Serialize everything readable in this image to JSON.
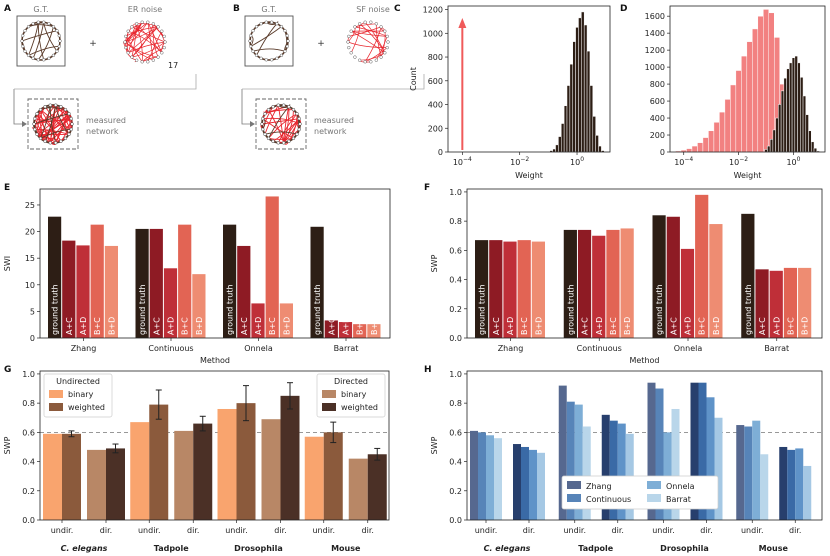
{
  "panel_letters": [
    "A",
    "B",
    "C",
    "D",
    "E",
    "F",
    "G",
    "H"
  ],
  "schematics": {
    "A": {
      "gt_label": "G.T.",
      "noise_label": "ER noise",
      "plus": "+",
      "count": "17",
      "measured_label": [
        "measured",
        "network"
      ]
    },
    "B": {
      "gt_label": "G.T.",
      "noise_label": "SF noise",
      "plus": "+",
      "measured_label": [
        "measured",
        "network"
      ]
    }
  },
  "colors": {
    "black": "#2d1e15",
    "red_dark": "#8e1b24",
    "red_mid": "#bf2f38",
    "red_light": "#e26454",
    "salmon": "#ee8c72",
    "hist_red": "#f06c6c",
    "hist_black": "#2d1e15",
    "g_bin_und": "#f9a46e",
    "g_w_und": "#8b5a3c",
    "g_bin_dir": "#b88766",
    "g_w_dir": "#4b3026",
    "h_zhang": "#56688f",
    "h_cont": "#5784b8",
    "h_onnela": "#7eaed6",
    "h_barrat": "#b9d6ea"
  },
  "chart_data": [
    {
      "panel": "C",
      "type": "bar",
      "xlabel": "Weight",
      "ylabel": "Count",
      "xscale": "log",
      "xticks": [
        "10^{-4}",
        "10^{-2}",
        "10^{0}"
      ],
      "yticks": [
        0,
        200,
        400,
        600,
        800,
        1000,
        1200
      ],
      "ylim": [
        0,
        1230
      ],
      "arrow_x": 0.0001,
      "bins_log10": [
        -0.9,
        -0.8,
        -0.7,
        -0.6,
        -0.5,
        -0.4,
        -0.3,
        -0.2,
        -0.1,
        0.0,
        0.1,
        0.2,
        0.3,
        0.4,
        0.5,
        0.6,
        0.7,
        0.8,
        0.9
      ],
      "counts": [
        12,
        25,
        60,
        130,
        240,
        390,
        560,
        740,
        930,
        1050,
        1130,
        1180,
        1070,
        850,
        560,
        300,
        140,
        50,
        12
      ]
    },
    {
      "panel": "D",
      "type": "bar",
      "xlabel": "Weight",
      "xscale": "log",
      "xticks": [
        "10^{-4}",
        "10^{-2}",
        "10^{0}"
      ],
      "yticks": [
        0,
        200,
        400,
        600,
        800,
        1000,
        1200,
        1400,
        1600
      ],
      "ylim": [
        0,
        1720
      ],
      "series": [
        {
          "name": "",
          "bins_log10": [
            -4.6,
            -4.4,
            -4.2,
            -4.0,
            -3.8,
            -3.6,
            -3.4,
            -3.2,
            -3.0,
            -2.8,
            -2.6,
            -2.4,
            -2.2,
            -2.0,
            -1.8,
            -1.6,
            -1.4,
            -1.2,
            -1.0,
            -0.8,
            -0.6,
            -0.4,
            -0.2
          ],
          "counts": [
            3,
            6,
            12,
            22,
            40,
            70,
            110,
            170,
            250,
            350,
            470,
            620,
            790,
            960,
            1130,
            1300,
            1450,
            1600,
            1680,
            1640,
            1350,
            800,
            250
          ]
        },
        {
          "name": "",
          "bins_log10": [
            -1.0,
            -0.9,
            -0.8,
            -0.7,
            -0.6,
            -0.5,
            -0.4,
            -0.3,
            -0.2,
            -0.1,
            0.0,
            0.1,
            0.2,
            0.3,
            0.4,
            0.5,
            0.6,
            0.7,
            0.8,
            0.9
          ],
          "counts": [
            30,
            70,
            150,
            260,
            400,
            560,
            720,
            870,
            980,
            1050,
            1110,
            1130,
            1050,
            880,
            660,
            440,
            250,
            120,
            45,
            12
          ]
        }
      ]
    },
    {
      "panel": "E",
      "type": "bar",
      "xlabel": "Method",
      "ylabel": "SWI",
      "ylim": [
        0,
        28
      ],
      "yticks": [
        0,
        5,
        10,
        15,
        20,
        25
      ],
      "categories": [
        "Zhang",
        "Continuous",
        "Onnela",
        "Barrat"
      ],
      "bar_labels": [
        "ground truth",
        "A+C",
        "A+D",
        "B+C",
        "B+D"
      ],
      "series": [
        {
          "name": "ground truth",
          "values": [
            22.8,
            20.5,
            21.3,
            20.9
          ]
        },
        {
          "name": "A+C",
          "values": [
            18.3,
            20.5,
            17.3,
            3.3
          ]
        },
        {
          "name": "A+D",
          "values": [
            17.4,
            13.1,
            6.5,
            3.0
          ]
        },
        {
          "name": "B+C",
          "values": [
            21.3,
            21.3,
            26.6,
            2.6
          ]
        },
        {
          "name": "B+D",
          "values": [
            17.3,
            12.0,
            6.5,
            2.6
          ]
        }
      ]
    },
    {
      "panel": "F",
      "type": "bar",
      "xlabel": "Method",
      "ylabel": "SWP",
      "ylim": [
        0,
        1.02
      ],
      "yticks": [
        "0.0",
        "0.2",
        "0.4",
        "0.6",
        "0.8",
        "1.0"
      ],
      "categories": [
        "Zhang",
        "Continuous",
        "Onnela",
        "Barrat"
      ],
      "bar_labels": [
        "ground truth",
        "A+C",
        "A+D",
        "B+C",
        "B+D"
      ],
      "series": [
        {
          "name": "ground truth",
          "values": [
            0.67,
            0.74,
            0.84,
            0.85
          ]
        },
        {
          "name": "A+C",
          "values": [
            0.67,
            0.74,
            0.83,
            0.47
          ]
        },
        {
          "name": "A+D",
          "values": [
            0.66,
            0.7,
            0.61,
            0.46
          ]
        },
        {
          "name": "B+C",
          "values": [
            0.67,
            0.74,
            0.98,
            0.48
          ]
        },
        {
          "name": "B+D",
          "values": [
            0.66,
            0.75,
            0.78,
            0.48
          ]
        }
      ]
    },
    {
      "panel": "G",
      "type": "bar",
      "ylabel": "SWP",
      "ylim": [
        0,
        1.02
      ],
      "yticks": [
        "0.0",
        "0.2",
        "0.4",
        "0.6",
        "0.8",
        "1.0"
      ],
      "reference_line": 0.6,
      "groups": [
        "C. elegans",
        "Tadpole",
        "Drosophila",
        "Mouse"
      ],
      "subgroups": [
        "undir.",
        "dir."
      ],
      "legend_undirected": {
        "title": "Undirected",
        "items": [
          "binary",
          "weighted"
        ]
      },
      "legend_directed": {
        "title": "Directed",
        "items": [
          "binary",
          "weighted"
        ]
      },
      "undirected_binary": [
        0.59,
        0.67,
        0.76,
        0.57
      ],
      "undirected_weighted": [
        0.59,
        0.79,
        0.8,
        0.6
      ],
      "undirected_weighted_err": [
        0.02,
        0.1,
        0.12,
        0.07
      ],
      "directed_binary": [
        0.48,
        0.61,
        0.69,
        0.42
      ],
      "directed_weighted": [
        0.49,
        0.66,
        0.85,
        0.45
      ],
      "directed_weighted_err": [
        0.03,
        0.05,
        0.09,
        0.04
      ]
    },
    {
      "panel": "H",
      "type": "bar",
      "ylabel": "SWP",
      "ylim": [
        0,
        1.02
      ],
      "yticks": [
        "0.0",
        "0.2",
        "0.4",
        "0.6",
        "0.8",
        "1.0"
      ],
      "reference_line": 0.6,
      "groups": [
        "C. elegans",
        "Tadpole",
        "Drosophila",
        "Mouse"
      ],
      "subgroups": [
        "undir.",
        "dir."
      ],
      "legend": [
        "Zhang",
        "Onnela",
        "Continuous",
        "Barrat"
      ],
      "series": [
        {
          "name": "Zhang",
          "values": [
            0.61,
            0.52,
            0.92,
            0.72,
            0.94,
            0.94,
            0.65,
            0.5
          ]
        },
        {
          "name": "Continuous",
          "values": [
            0.6,
            0.5,
            0.81,
            0.68,
            0.9,
            0.94,
            0.64,
            0.48
          ]
        },
        {
          "name": "Onnela",
          "values": [
            0.58,
            0.48,
            0.79,
            0.66,
            0.6,
            0.84,
            0.68,
            0.49
          ]
        },
        {
          "name": "Barrat",
          "values": [
            0.56,
            0.46,
            0.64,
            0.59,
            0.76,
            0.7,
            0.45,
            0.37
          ]
        }
      ]
    }
  ]
}
